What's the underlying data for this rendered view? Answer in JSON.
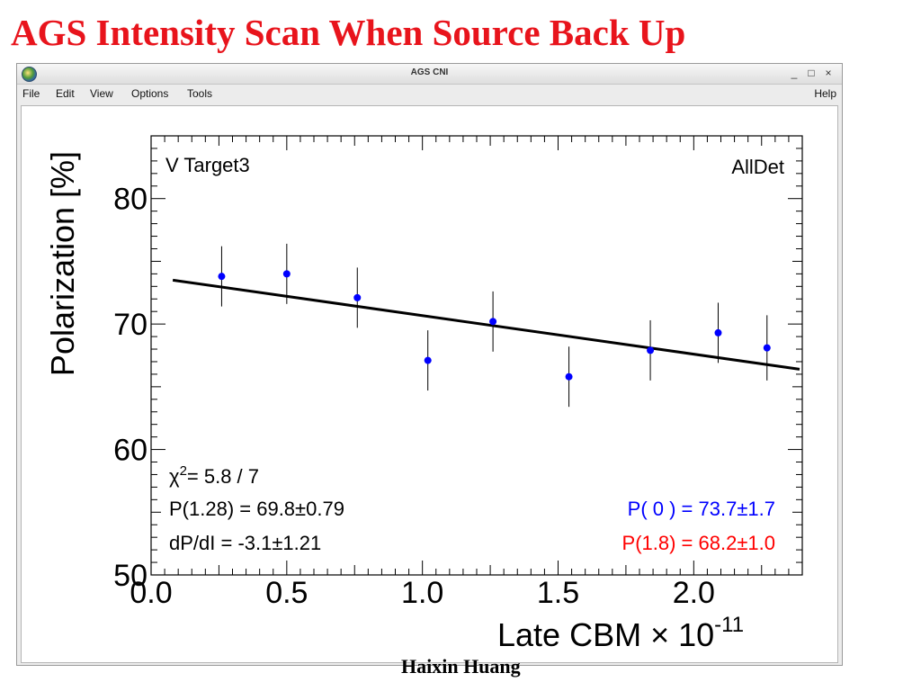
{
  "slide": {
    "title": "AGS Intensity Scan When Source Back Up",
    "footer": "Haixin Huang"
  },
  "window": {
    "title": "AGS CNI",
    "minimize": "_",
    "maximize": "□",
    "close": "×",
    "menus": [
      "File",
      "Edit",
      "View",
      "Options",
      "Tools"
    ],
    "help": "Help"
  },
  "chart_data": {
    "type": "scatter",
    "ylabel": "Polarization [%]",
    "xlabel": "Late CBM",
    "x_multiplier": "× 10",
    "x_exponent": "-11",
    "xlim": [
      0.0,
      2.4
    ],
    "ylim": [
      50,
      85
    ],
    "x_ticks": [
      "0.0",
      "0.5",
      "1.0",
      "1.5",
      "2.0"
    ],
    "y_ticks": [
      "50",
      "60",
      "70",
      "80"
    ],
    "grid": false,
    "series": [
      {
        "color": "#0000ff",
        "points": [
          {
            "x": 0.26,
            "y": 73.8,
            "err": 2.4
          },
          {
            "x": 0.5,
            "y": 74.0,
            "err": 2.4
          },
          {
            "x": 0.76,
            "y": 72.1,
            "err": 2.4
          },
          {
            "x": 1.02,
            "y": 67.1,
            "err": 2.4
          },
          {
            "x": 1.26,
            "y": 70.2,
            "err": 2.4
          },
          {
            "x": 1.54,
            "y": 65.8,
            "err": 2.4
          },
          {
            "x": 1.84,
            "y": 67.9,
            "err": 2.4
          },
          {
            "x": 2.09,
            "y": 69.3,
            "err": 2.4
          },
          {
            "x": 2.27,
            "y": 68.1,
            "err": 2.6
          }
        ]
      }
    ],
    "fit_line": {
      "x": [
        0.08,
        2.39
      ],
      "y": [
        73.5,
        66.4
      ],
      "color": "#000000"
    },
    "annotations": {
      "target": "V Target3",
      "detector": "AllDet",
      "chi2_prefix": "χ",
      "chi2_sup": "2",
      "chi2_value": "=  5.8 / 7",
      "p_mean": "P(1.28) = 69.8±0.79",
      "slope": "dP/dI = -3.1±1.21",
      "p_zero": "P( 0 ) = 73.7±1.7",
      "p_end": "P(1.8) = 68.2±1.0"
    },
    "colors": {
      "points": "#0000ff",
      "p_zero": "#0000ff",
      "p_end": "#ff0000",
      "text": "#000000"
    }
  }
}
